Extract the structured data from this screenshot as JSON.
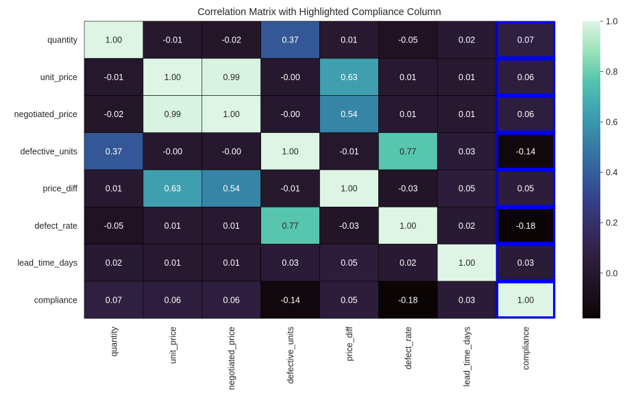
{
  "chart_data": {
    "type": "heatmap",
    "title": "Correlation Matrix with Highlighted Compliance Column",
    "xlabel": "",
    "ylabel": "",
    "labels": [
      "quantity",
      "unit_price",
      "negotiated_price",
      "defective_units",
      "price_diff",
      "defect_rate",
      "lead_time_days",
      "compliance"
    ],
    "values": [
      [
        1.0,
        -0.01,
        -0.02,
        0.37,
        0.01,
        -0.05,
        0.02,
        0.07
      ],
      [
        -0.01,
        1.0,
        0.99,
        -0.0,
        0.63,
        0.01,
        0.01,
        0.06
      ],
      [
        -0.02,
        0.99,
        1.0,
        -0.0,
        0.54,
        0.01,
        0.01,
        0.06
      ],
      [
        0.37,
        -0.0,
        -0.0,
        1.0,
        -0.01,
        0.77,
        0.03,
        -0.14
      ],
      [
        0.01,
        0.63,
        0.54,
        -0.01,
        1.0,
        -0.03,
        0.05,
        0.05
      ],
      [
        -0.05,
        0.01,
        0.01,
        0.77,
        -0.03,
        1.0,
        0.02,
        -0.18
      ],
      [
        0.02,
        0.01,
        0.01,
        0.03,
        0.05,
        0.02,
        1.0,
        0.03
      ],
      [
        0.07,
        0.06,
        0.06,
        -0.14,
        0.05,
        -0.18,
        0.03,
        1.0
      ]
    ],
    "value_labels": [
      [
        "1.00",
        "-0.01",
        "-0.02",
        "0.37",
        "0.01",
        "-0.05",
        "0.02",
        "0.07"
      ],
      [
        "-0.01",
        "1.00",
        "0.99",
        "-0.00",
        "0.63",
        "0.01",
        "0.01",
        "0.06"
      ],
      [
        "-0.02",
        "0.99",
        "1.00",
        "-0.00",
        "0.54",
        "0.01",
        "0.01",
        "0.06"
      ],
      [
        "0.37",
        "-0.00",
        "-0.00",
        "1.00",
        "-0.01",
        "0.77",
        "0.03",
        "-0.14"
      ],
      [
        "0.01",
        "0.63",
        "0.54",
        "-0.01",
        "1.00",
        "-0.03",
        "0.05",
        "0.05"
      ],
      [
        "-0.05",
        "0.01",
        "0.01",
        "0.77",
        "-0.03",
        "1.00",
        "0.02",
        "-0.18"
      ],
      [
        "0.02",
        "0.01",
        "0.01",
        "0.03",
        "0.05",
        "0.02",
        "1.00",
        "0.03"
      ],
      [
        "0.07",
        "0.06",
        "0.06",
        "-0.14",
        "0.05",
        "-0.18",
        "0.03",
        "1.00"
      ]
    ],
    "highlighted_column": "compliance",
    "highlight_color": "#0000ff",
    "colormap": "mako",
    "color_range": [
      -0.18,
      1.0
    ],
    "colorbar_ticks": [
      1.0,
      0.8,
      0.6,
      0.4,
      0.2,
      0.0
    ],
    "colorbar_tick_labels": [
      "1.0",
      "0.8",
      "0.6",
      "0.4",
      "0.2",
      "0.0"
    ],
    "colorbar_placement": "right",
    "grid": false
  }
}
